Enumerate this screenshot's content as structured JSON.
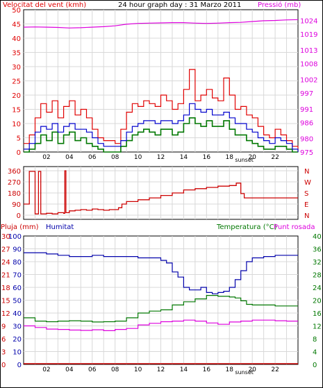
{
  "colors": {
    "wind_speed": "#e00000",
    "wind_avg": "#0000cc",
    "wind_min": "#007700",
    "pressure": "#dd00dd",
    "direction": "#cc0000",
    "humidity": "#0000aa",
    "temperature": "#007700",
    "dewpoint": "#dd00dd",
    "rain": "#cc0000",
    "frame": "#000000"
  },
  "chart_data": [
    {
      "type": "line",
      "title": "24 hour graph day : 31 Marzo 2011",
      "ylabel_left": "Velocitat del vent (kmh)",
      "ylabel_right": "Pressió (mb)",
      "x_ticks": [
        "02",
        "04",
        "06",
        "08",
        "10",
        "12",
        "14",
        "16",
        "18",
        "sunset",
        "20",
        "22"
      ],
      "y_ticks_left": [
        "0",
        "5",
        "10",
        "15",
        "20",
        "25",
        "30",
        "35",
        "40",
        "45",
        "50"
      ],
      "y_ticks_right": [
        "975",
        "980",
        "986",
        "991",
        "997",
        "1002",
        "1008",
        "1013",
        "1019",
        "1024"
      ],
      "ylim_left": [
        0,
        50
      ],
      "ylim_right": [
        975,
        1028
      ],
      "series": [
        {
          "name": "Velocitat del vent (kmh)",
          "axis": "left",
          "x": [
            0,
            0.5,
            1,
            1.5,
            2,
            2.5,
            3,
            3.5,
            4,
            4.5,
            5,
            5.5,
            6,
            6.5,
            7,
            7.5,
            8,
            8.5,
            9,
            9.5,
            10,
            10.5,
            11,
            11.5,
            12,
            12.5,
            13,
            13.5,
            14,
            14.5,
            15,
            15.5,
            16,
            16.5,
            17,
            17.5,
            18,
            18.5,
            19,
            19.5,
            20,
            20.5,
            21,
            21.5,
            22,
            22.5,
            23,
            23.5,
            24
          ],
          "y": [
            3,
            6,
            12,
            17,
            14,
            18,
            12,
            16,
            18,
            13,
            15,
            12,
            8,
            5,
            4,
            4,
            3,
            8,
            14,
            17,
            16,
            18,
            17,
            16,
            20,
            18,
            15,
            17,
            22,
            29,
            18,
            20,
            22,
            19,
            18,
            26,
            20,
            15,
            16,
            13,
            12,
            9,
            6,
            5,
            8,
            6,
            4,
            2,
            0
          ]
        },
        {
          "name": "",
          "axis": "left",
          "x": [
            0,
            0.5,
            1,
            1.5,
            2,
            2.5,
            3,
            3.5,
            4,
            4.5,
            5,
            5.5,
            6,
            6.5,
            7,
            7.5,
            8,
            8.5,
            9,
            9.5,
            10,
            10.5,
            11,
            11.5,
            12,
            12.5,
            13,
            13.5,
            14,
            14.5,
            15,
            15.5,
            16,
            16.5,
            17,
            17.5,
            18,
            18.5,
            19,
            19.5,
            20,
            20.5,
            21,
            21.5,
            22,
            22.5,
            23,
            23.5,
            24
          ],
          "y": [
            1,
            3,
            7,
            9,
            8,
            10,
            7,
            9,
            10,
            8,
            8,
            7,
            5,
            3,
            2,
            2,
            2,
            4,
            7,
            9,
            10,
            11,
            11,
            10,
            11,
            11,
            10,
            11,
            13,
            17,
            15,
            14,
            15,
            13,
            13,
            14,
            12,
            10,
            10,
            8,
            7,
            5,
            4,
            3,
            5,
            4,
            3,
            1,
            0
          ]
        },
        {
          "name": "",
          "axis": "left",
          "x": [
            0,
            0.5,
            1,
            1.5,
            2,
            2.5,
            3,
            3.5,
            4,
            4.5,
            5,
            5.5,
            6,
            6.5,
            7,
            7.5,
            8,
            8.5,
            9,
            9.5,
            10,
            10.5,
            11,
            11.5,
            12,
            12.5,
            13,
            13.5,
            14,
            14.5,
            15,
            15.5,
            16,
            16.5,
            17,
            17.5,
            18,
            18.5,
            19,
            19.5,
            20,
            20.5,
            21,
            21.5,
            22,
            22.5,
            23,
            23.5,
            24
          ],
          "y": [
            0,
            1,
            3,
            6,
            4,
            7,
            3,
            6,
            7,
            4,
            5,
            3,
            2,
            1,
            0,
            0,
            0,
            2,
            4,
            6,
            7,
            8,
            7,
            6,
            8,
            8,
            6,
            7,
            10,
            12,
            10,
            9,
            11,
            9,
            9,
            11,
            8,
            6,
            6,
            4,
            3,
            2,
            1,
            1,
            2,
            2,
            1,
            0,
            0
          ]
        },
        {
          "name": "Pressió (mb)",
          "axis": "right",
          "x": [
            0,
            1,
            2,
            3,
            4,
            5,
            6,
            7,
            8,
            9,
            10,
            11,
            12,
            13,
            14,
            15,
            16,
            17,
            18,
            19,
            20,
            21,
            22,
            23,
            24
          ],
          "y": [
            1021.5,
            1021.6,
            1021.5,
            1021.4,
            1021.2,
            1021.3,
            1021.5,
            1021.7,
            1022.0,
            1022.6,
            1022.9,
            1023.0,
            1023.1,
            1023.2,
            1023.2,
            1023.0,
            1022.9,
            1023.0,
            1023.2,
            1023.3,
            1023.6,
            1023.9,
            1024.0,
            1024.2,
            1024.3
          ]
        }
      ]
    },
    {
      "type": "line",
      "y_ticks_left": [
        "0",
        "90",
        "180",
        "270",
        "360"
      ],
      "y_ticks_right": [
        "N",
        "E",
        "S",
        "W",
        "N"
      ],
      "ylim": [
        0,
        360
      ],
      "series": [
        {
          "name": "",
          "x": [
            0,
            0.4,
            0.5,
            0.9,
            1,
            1.3,
            1.5,
            2,
            2.5,
            3,
            3.5,
            3.6,
            3.7,
            4,
            4.5,
            5,
            5.5,
            6,
            6.5,
            7,
            7.5,
            8,
            8.3,
            8.6,
            9,
            10,
            11,
            12,
            13,
            14,
            15,
            16,
            17,
            18,
            18.6,
            19,
            19.3,
            19.6,
            20,
            21,
            22,
            23,
            24
          ],
          "y": [
            90,
            90,
            355,
            355,
            10,
            355,
            10,
            15,
            10,
            20,
            15,
            360,
            20,
            35,
            40,
            45,
            40,
            50,
            45,
            40,
            45,
            45,
            60,
            90,
            110,
            125,
            140,
            160,
            180,
            205,
            215,
            225,
            235,
            240,
            260,
            175,
            140,
            140,
            140,
            140,
            140,
            140,
            140
          ]
        }
      ]
    },
    {
      "type": "line",
      "ylabel_left": "Pluja (mm)",
      "ylabel_left2": "Humitat",
      "ylabel_right": "Temperatura (°C)",
      "ylabel_right2": "Punt rosada",
      "x_ticks": [
        "02",
        "04",
        "06",
        "08",
        "10",
        "12",
        "14",
        "16",
        "18",
        "sunset",
        "20",
        "22"
      ],
      "y_ticks_rain": [
        "0",
        "3",
        "6",
        "9",
        "12",
        "15",
        "18",
        "21",
        "24",
        "27",
        "30"
      ],
      "y_ticks_hum": [
        "0",
        "10",
        "20",
        "30",
        "40",
        "50",
        "60",
        "70",
        "80",
        "90",
        "100"
      ],
      "y_ticks_temp": [
        "0",
        "4",
        "8",
        "12",
        "16",
        "20",
        "24",
        "28",
        "32",
        "36",
        "40"
      ],
      "ylim_hum": [
        0,
        100
      ],
      "ylim_temp": [
        0,
        40
      ],
      "series": [
        {
          "name": "Humitat",
          "axis": "hum",
          "x": [
            0,
            1,
            2,
            3,
            4,
            5,
            6,
            7,
            8,
            9,
            10,
            11,
            12,
            12.5,
            13,
            13.5,
            14,
            14.5,
            15,
            15.5,
            16,
            16.5,
            17,
            17.5,
            18,
            18.5,
            19,
            19.5,
            20,
            21,
            22,
            23,
            24
          ],
          "y": [
            87,
            87,
            86,
            85,
            84,
            84,
            85,
            84,
            84,
            84,
            83,
            83,
            81,
            79,
            72,
            68,
            60,
            58,
            58,
            60,
            56,
            55,
            56,
            57,
            60,
            66,
            73,
            80,
            83,
            84,
            85,
            85,
            85
          ]
        },
        {
          "name": "Temperatura (°C)",
          "axis": "temp",
          "x": [
            0,
            1,
            2,
            3,
            4,
            5,
            6,
            7,
            8,
            9,
            10,
            11,
            12,
            13,
            14,
            15,
            16,
            17,
            18,
            18.5,
            19,
            19.5,
            20,
            21,
            22,
            23,
            24
          ],
          "y": [
            14.5,
            13.5,
            13.3,
            13.5,
            13.6,
            13.5,
            13.2,
            13.3,
            13.5,
            14.5,
            16,
            16.6,
            17,
            18.5,
            19.5,
            20.4,
            21.5,
            21.2,
            21,
            20.7,
            19.8,
            18.7,
            18.5,
            18.5,
            18.2,
            18.2,
            18.2
          ]
        },
        {
          "name": "Punt rosada",
          "axis": "temp",
          "x": [
            0,
            1,
            2,
            3,
            4,
            5,
            6,
            7,
            8,
            9,
            10,
            11,
            12,
            13,
            14,
            15,
            16,
            17,
            18,
            19,
            20,
            21,
            22,
            23,
            24
          ],
          "y": [
            12,
            11.5,
            11,
            10.9,
            10.7,
            10.6,
            10.8,
            10.5,
            10.9,
            11.2,
            12.3,
            12.8,
            13.3,
            13.5,
            13.8,
            13.5,
            12.9,
            12.5,
            13.2,
            13.5,
            13.8,
            13.8,
            13.6,
            13.5,
            13.5
          ]
        },
        {
          "name": "Pluja (mm)",
          "axis": "rain",
          "x": [
            0,
            24
          ],
          "y": [
            0,
            0
          ]
        }
      ]
    }
  ]
}
